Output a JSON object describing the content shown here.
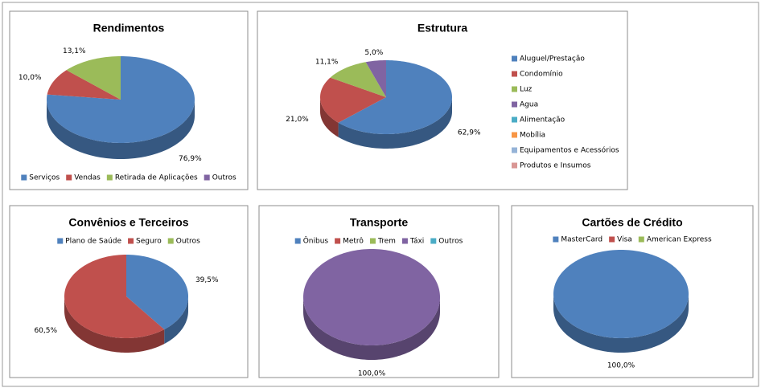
{
  "chart_data": [
    {
      "type": "pie",
      "title": "Rendimentos",
      "legend": "bottom",
      "categories": [
        "Serviços",
        "Vendas",
        "Retirada de Aplicações",
        "Outros"
      ],
      "values": [
        76.9,
        10.0,
        13.1,
        0
      ],
      "value_labels": [
        "76,9%",
        "10,0%",
        "13,1%",
        null
      ],
      "colors": [
        "#4f81bd",
        "#c0504d",
        "#9bbb59",
        "#8064a2"
      ]
    },
    {
      "type": "pie",
      "title": "Estrutura",
      "legend": "right",
      "categories": [
        "Aluguel/Prestação",
        "Condomínio",
        "Luz",
        "Agua",
        "Alimentação",
        "Mobília",
        "Equipamentos e Acessórios",
        "Produtos e Insumos"
      ],
      "values": [
        62.9,
        21.0,
        11.1,
        5.0,
        0,
        0,
        0,
        0
      ],
      "value_labels": [
        "62,9%",
        "21,0%",
        "11,1%",
        "5,0%",
        null,
        null,
        null,
        null
      ],
      "colors": [
        "#4f81bd",
        "#c0504d",
        "#9bbb59",
        "#8064a2",
        "#4bacc6",
        "#f79646",
        "#95b3d7",
        "#d99694"
      ]
    },
    {
      "type": "pie",
      "title": "Convênios e Terceiros",
      "legend": "top",
      "categories": [
        "Plano de Saúde",
        "Seguro",
        "Outros"
      ],
      "values": [
        39.5,
        60.5,
        0
      ],
      "value_labels": [
        "39,5%",
        "60,5%",
        null
      ],
      "colors": [
        "#4f81bd",
        "#c0504d",
        "#9bbb59"
      ]
    },
    {
      "type": "pie",
      "title": "Transporte",
      "legend": "top",
      "categories": [
        "Ônibus",
        "Metrô",
        "Trem",
        "Táxi",
        "Outros"
      ],
      "values": [
        0,
        0,
        0,
        100,
        0
      ],
      "value_labels": [
        null,
        null,
        null,
        "100,0%",
        null
      ],
      "colors": [
        "#4f81bd",
        "#c0504d",
        "#9bbb59",
        "#8064a2",
        "#4bacc6"
      ]
    },
    {
      "type": "pie",
      "title": "Cartões de Crédito",
      "legend": "top",
      "categories": [
        "MasterCard",
        "Visa",
        "American Express"
      ],
      "values": [
        100,
        0,
        0
      ],
      "value_labels": [
        "100,0%",
        null,
        null
      ],
      "colors": [
        "#4f81bd",
        "#c0504d",
        "#9bbb59"
      ]
    }
  ]
}
